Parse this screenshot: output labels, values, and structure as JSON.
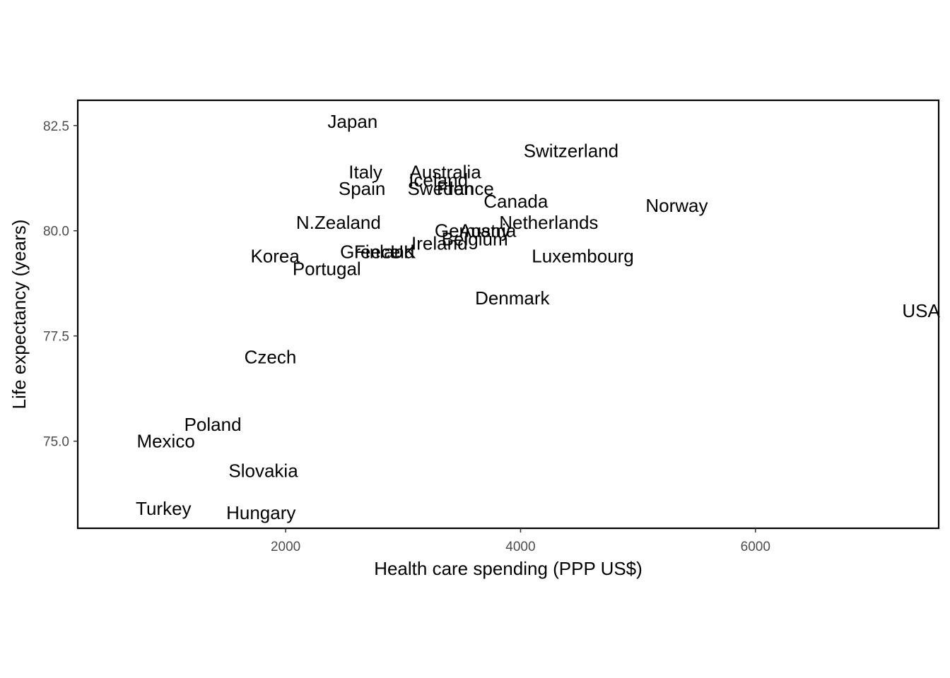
{
  "chart_data": {
    "type": "scatter",
    "xlabel": "Health care spending (PPP US$)",
    "ylabel": "Life expectancy (years)",
    "xlim": [
      230,
      7560
    ],
    "ylim": [
      72.93,
      83.1
    ],
    "xticks": [
      2000,
      4000,
      6000
    ],
    "yticks": [
      75.0,
      77.5,
      80.0,
      82.5
    ],
    "xtick_labels": [
      "2000",
      "4000",
      "6000"
    ],
    "ytick_labels": [
      "75.0",
      "77.5",
      "80.0",
      "82.5"
    ],
    "grid": false,
    "points": [
      {
        "label": "Japan",
        "x": 2570,
        "y": 82.6
      },
      {
        "label": "Switzerland",
        "x": 4430,
        "y": 81.9
      },
      {
        "label": "Italy",
        "x": 2680,
        "y": 81.4
      },
      {
        "label": "Australia",
        "x": 3360,
        "y": 81.4
      },
      {
        "label": "Iceland",
        "x": 3300,
        "y": 81.2
      },
      {
        "label": "Spain",
        "x": 2650,
        "y": 81.0
      },
      {
        "label": "Sweden",
        "x": 3320,
        "y": 81.0
      },
      {
        "label": "France",
        "x": 3530,
        "y": 81.0
      },
      {
        "label": "Canada",
        "x": 3960,
        "y": 80.7
      },
      {
        "label": "Norway",
        "x": 5330,
        "y": 80.6
      },
      {
        "label": "N.Zealand",
        "x": 2450,
        "y": 80.2
      },
      {
        "label": "Netherlands",
        "x": 4240,
        "y": 80.2
      },
      {
        "label": "Austria",
        "x": 3720,
        "y": 80.0
      },
      {
        "label": "Germany",
        "x": 3590,
        "y": 80.0
      },
      {
        "label": "Belgium",
        "x": 3610,
        "y": 79.8
      },
      {
        "label": "Ireland",
        "x": 3310,
        "y": 79.7
      },
      {
        "label": "Greece",
        "x": 2720,
        "y": 79.5
      },
      {
        "label": "Finland",
        "x": 2840,
        "y": 79.5
      },
      {
        "label": "UK",
        "x": 3000,
        "y": 79.5
      },
      {
        "label": "Korea",
        "x": 1910,
        "y": 79.4
      },
      {
        "label": "Luxembourg",
        "x": 4530,
        "y": 79.4
      },
      {
        "label": "Portugal",
        "x": 2350,
        "y": 79.1
      },
      {
        "label": "Denmark",
        "x": 3930,
        "y": 78.4
      },
      {
        "label": "USA",
        "x": 7410,
        "y": 78.1
      },
      {
        "label": "Czech",
        "x": 1870,
        "y": 77.0
      },
      {
        "label": "Poland",
        "x": 1380,
        "y": 75.4
      },
      {
        "label": "Mexico",
        "x": 980,
        "y": 75.0
      },
      {
        "label": "Slovakia",
        "x": 1810,
        "y": 74.3
      },
      {
        "label": "Turkey",
        "x": 960,
        "y": 73.4
      },
      {
        "label": "Hungary",
        "x": 1790,
        "y": 73.3
      }
    ]
  },
  "colors": {
    "text": "#000000",
    "tick_text": "#4d4d4d",
    "panel_border": "#000000",
    "background": "#ffffff"
  }
}
